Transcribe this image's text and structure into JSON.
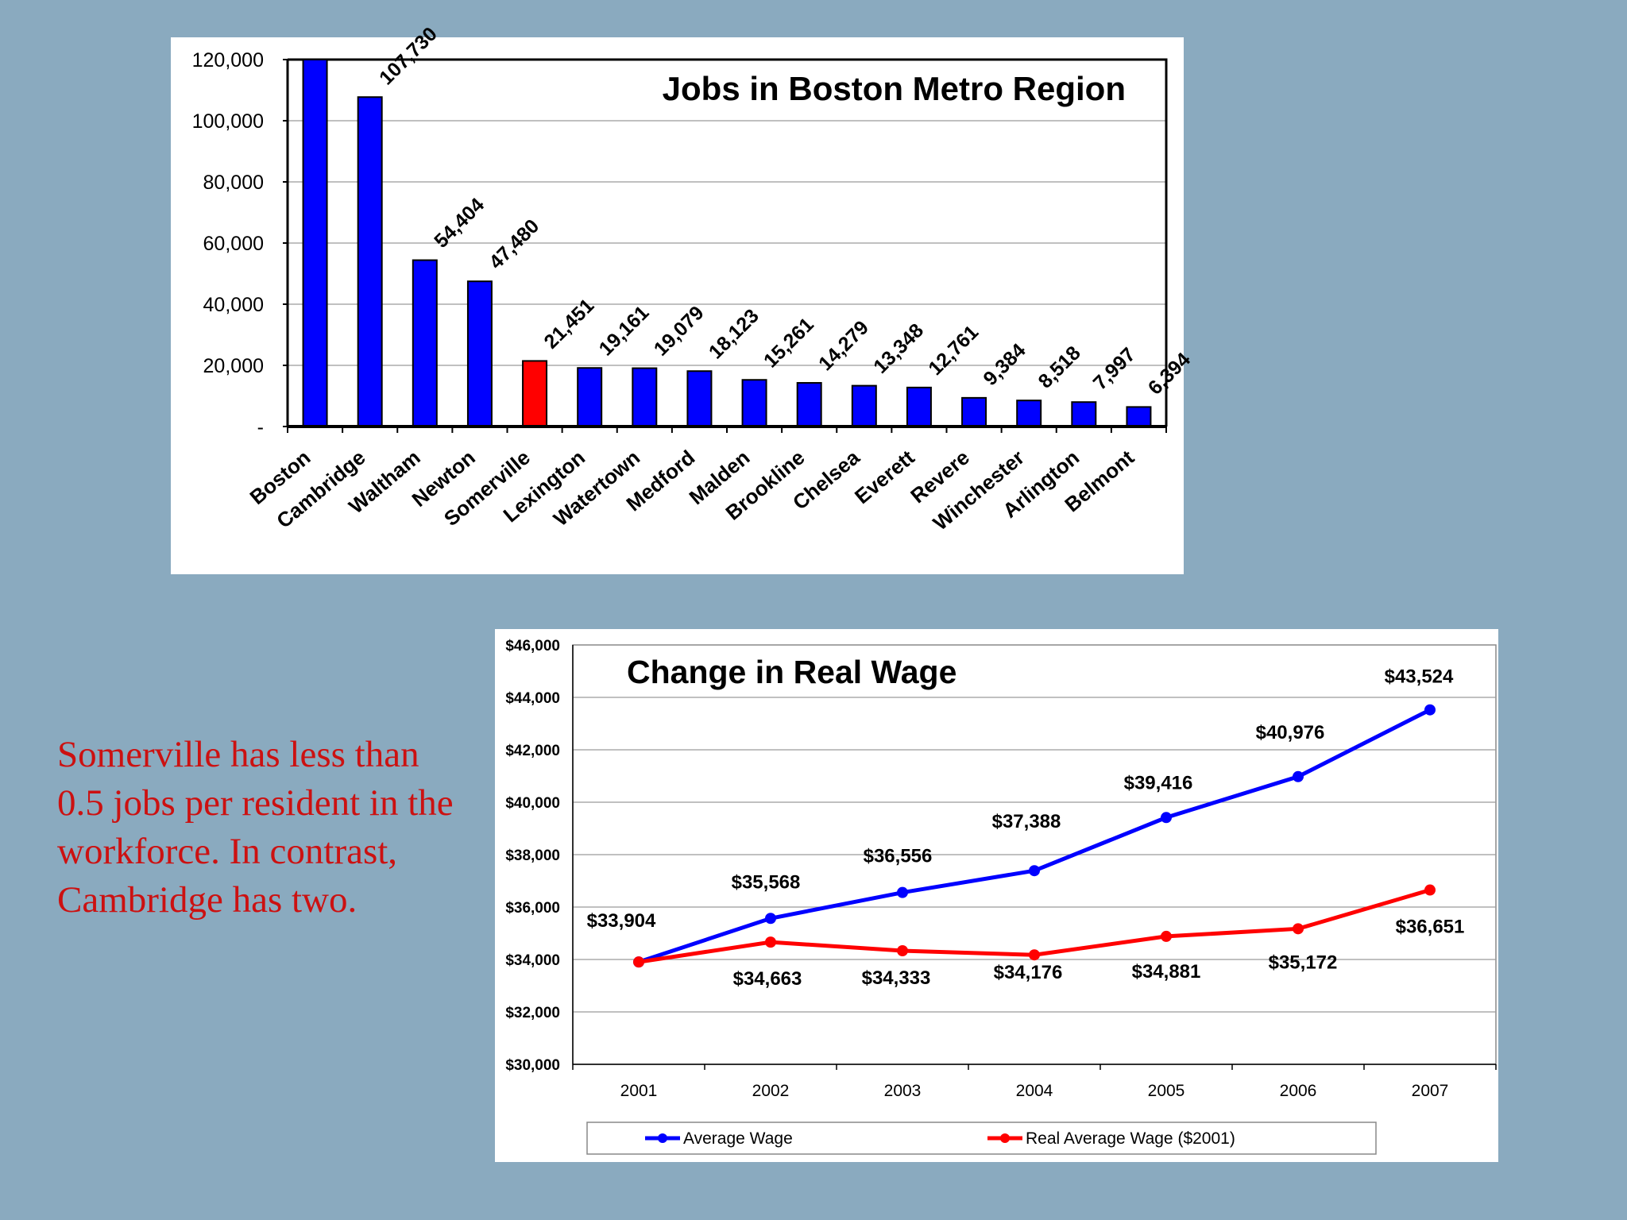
{
  "commentary": {
    "text": "Somerville has less than 0.5 jobs per resident in the workforce.   In contrast, Cambridge has two."
  },
  "chart_data": [
    {
      "type": "bar",
      "title": "Jobs in Boston Metro Region",
      "categories": [
        "Boston",
        "Cambridge",
        "Waltham",
        "Newton",
        "Somerville",
        "Lexington",
        "Watertown",
        "Medford",
        "Malden",
        "Brookline",
        "Chelsea",
        "Everett",
        "Revere",
        "Winchester",
        "Arlington",
        "Belmont"
      ],
      "values": [
        121000,
        107730,
        54404,
        47480,
        21451,
        19161,
        19079,
        18123,
        15261,
        14279,
        13348,
        12761,
        9384,
        8518,
        7997,
        6394
      ],
      "value_labels": [
        "",
        "107,730",
        "54,404",
        "47,480",
        "21,451",
        "19,161",
        "19,079",
        "18,123",
        "15,261",
        "14,279",
        "13,348",
        "12,761",
        "9,384",
        "8,518",
        "7,997",
        "6,394"
      ],
      "bar_colors": [
        "#0000ff",
        "#0000ff",
        "#0000ff",
        "#0000ff",
        "#ff0000",
        "#0000ff",
        "#0000ff",
        "#0000ff",
        "#0000ff",
        "#0000ff",
        "#0000ff",
        "#0000ff",
        "#0000ff",
        "#0000ff",
        "#0000ff",
        "#0000ff"
      ],
      "ylim": [
        0,
        120000
      ],
      "yticks": [
        0,
        20000,
        40000,
        60000,
        80000,
        100000,
        120000
      ],
      "ytick_labels": [
        "-",
        "20,000",
        "40,000",
        "60,000",
        "80,000",
        "100,000",
        "120,000"
      ],
      "grid": true,
      "legend": "none"
    },
    {
      "type": "line",
      "title": "Change in Real Wage",
      "x": [
        "2001",
        "2002",
        "2003",
        "2004",
        "2005",
        "2006",
        "2007"
      ],
      "series": [
        {
          "name": "Average Wage",
          "color": "#0000ff",
          "values": [
            33904,
            35568,
            36556,
            37388,
            39416,
            40976,
            43524
          ],
          "labels": [
            "$33,904",
            "$35,568",
            "$36,556",
            "$37,388",
            "$39,416",
            "$40,976",
            "$43,524"
          ]
        },
        {
          "name": "Real Average Wage ($2001)",
          "color": "#ff0000",
          "values": [
            33904,
            34663,
            34333,
            34176,
            34881,
            35172,
            36651
          ],
          "labels": [
            "",
            "$34,663",
            "$34,333",
            "$34,176",
            "$34,881",
            "$35,172",
            "$36,651"
          ]
        }
      ],
      "ylim": [
        30000,
        46000
      ],
      "yticks": [
        30000,
        32000,
        34000,
        36000,
        38000,
        40000,
        42000,
        44000,
        46000
      ],
      "ytick_labels": [
        "$30,000",
        "$32,000",
        "$34,000",
        "$36,000",
        "$38,000",
        "$40,000",
        "$42,000",
        "$44,000",
        "$46,000"
      ],
      "grid": true,
      "legend": "bottom"
    }
  ]
}
